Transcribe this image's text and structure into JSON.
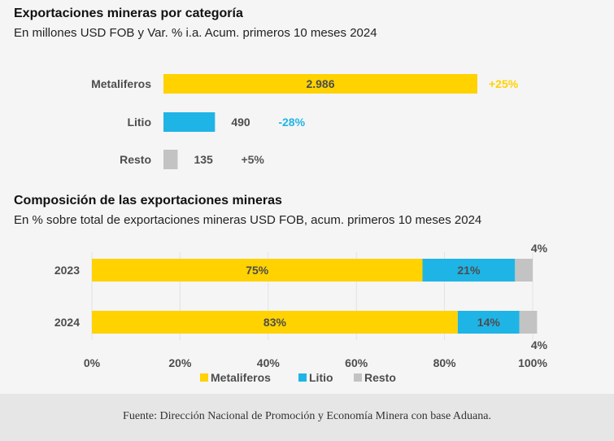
{
  "colors": {
    "metaliferos": "#ffd200",
    "litio": "#1fb4e6",
    "resto": "#c3c3c3",
    "label_dark": "#555555",
    "text": "#4d4d4d"
  },
  "chart1": {
    "title": "Exportaciones mineras por categoría",
    "subtitle": "En millones USD FOB y Var. % i.a. Acum. primeros 10 meses 2024"
  },
  "chart2": {
    "title": "Composición de las exportaciones mineras",
    "subtitle": "En % sobre total de exportaciones mineras USD FOB, acum. primeros 10 meses 2024"
  },
  "footer": {
    "source": "Fuente: Dirección Nacional de Promoción y Economía Minera con base Aduana."
  },
  "chart_data": [
    {
      "type": "bar",
      "orientation": "horizontal",
      "title": "Exportaciones mineras por categoría",
      "subtitle": "En millones USD FOB y Var. % i.a. Acum. primeros 10 meses 2024",
      "categories": [
        "Metaliferos",
        "Litio",
        "Resto"
      ],
      "values": [
        2986,
        490,
        135
      ],
      "value_labels": [
        "2.986",
        "490",
        "135"
      ],
      "variation_labels": [
        "+25%",
        "-28%",
        "+5%"
      ],
      "bar_colors": [
        "#ffd200",
        "#1fb4e6",
        "#c3c3c3"
      ],
      "variation_colors": [
        "#ffd200",
        "#1fb4e6",
        "#555555"
      ]
    },
    {
      "type": "bar",
      "orientation": "horizontal",
      "stacked": true,
      "title": "Composición de las exportaciones mineras",
      "subtitle": "En % sobre total de exportaciones mineras USD FOB, acum. primeros 10 meses 2024",
      "categories": [
        "2023",
        "2024"
      ],
      "series": [
        {
          "name": "Metaliferos",
          "values": [
            75,
            83
          ],
          "labels": [
            "75%",
            "83%"
          ],
          "color": "#ffd200"
        },
        {
          "name": "Litio",
          "values": [
            21,
            14
          ],
          "labels": [
            "21%",
            "14%"
          ],
          "color": "#1fb4e6"
        },
        {
          "name": "Resto",
          "values": [
            4,
            4
          ],
          "labels": [
            "4%",
            "4%"
          ],
          "color": "#c3c3c3"
        }
      ],
      "xlim": [
        0,
        100
      ],
      "xticks": [
        0,
        20,
        40,
        60,
        80,
        100
      ],
      "xtick_labels": [
        "0%",
        "20%",
        "40%",
        "60%",
        "80%",
        "100%"
      ],
      "legend_position": "bottom"
    }
  ]
}
